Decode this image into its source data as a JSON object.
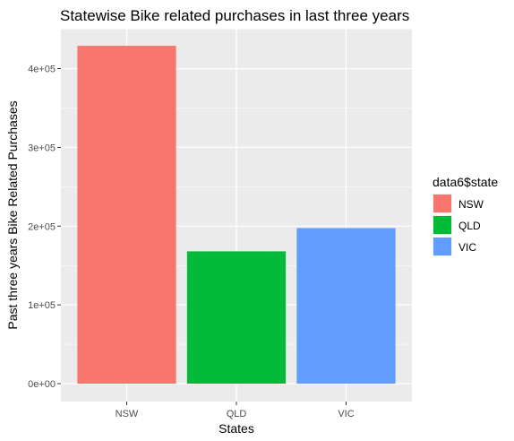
{
  "chart_data": {
    "type": "bar",
    "title": "Statewise Bike related purchases in last three years",
    "xlabel": "States",
    "ylabel": "Past three years Bike Related Purchases",
    "categories": [
      "NSW",
      "QLD",
      "VIC"
    ],
    "values": [
      429000,
      168000,
      197500
    ],
    "colors": [
      "#F8766D",
      "#00BA38",
      "#619CFF"
    ],
    "ylim": [
      0,
      450000
    ],
    "yticks": [
      0,
      100000,
      200000,
      300000,
      400000
    ],
    "ytick_labels": [
      "0e+00",
      "1e+05",
      "2e+05",
      "3e+05",
      "4e+05"
    ],
    "grid": true,
    "panel_color": "#EBEBEB",
    "legend": {
      "title": "data6$state",
      "position": "right",
      "entries": [
        "NSW",
        "QLD",
        "VIC"
      ]
    }
  }
}
